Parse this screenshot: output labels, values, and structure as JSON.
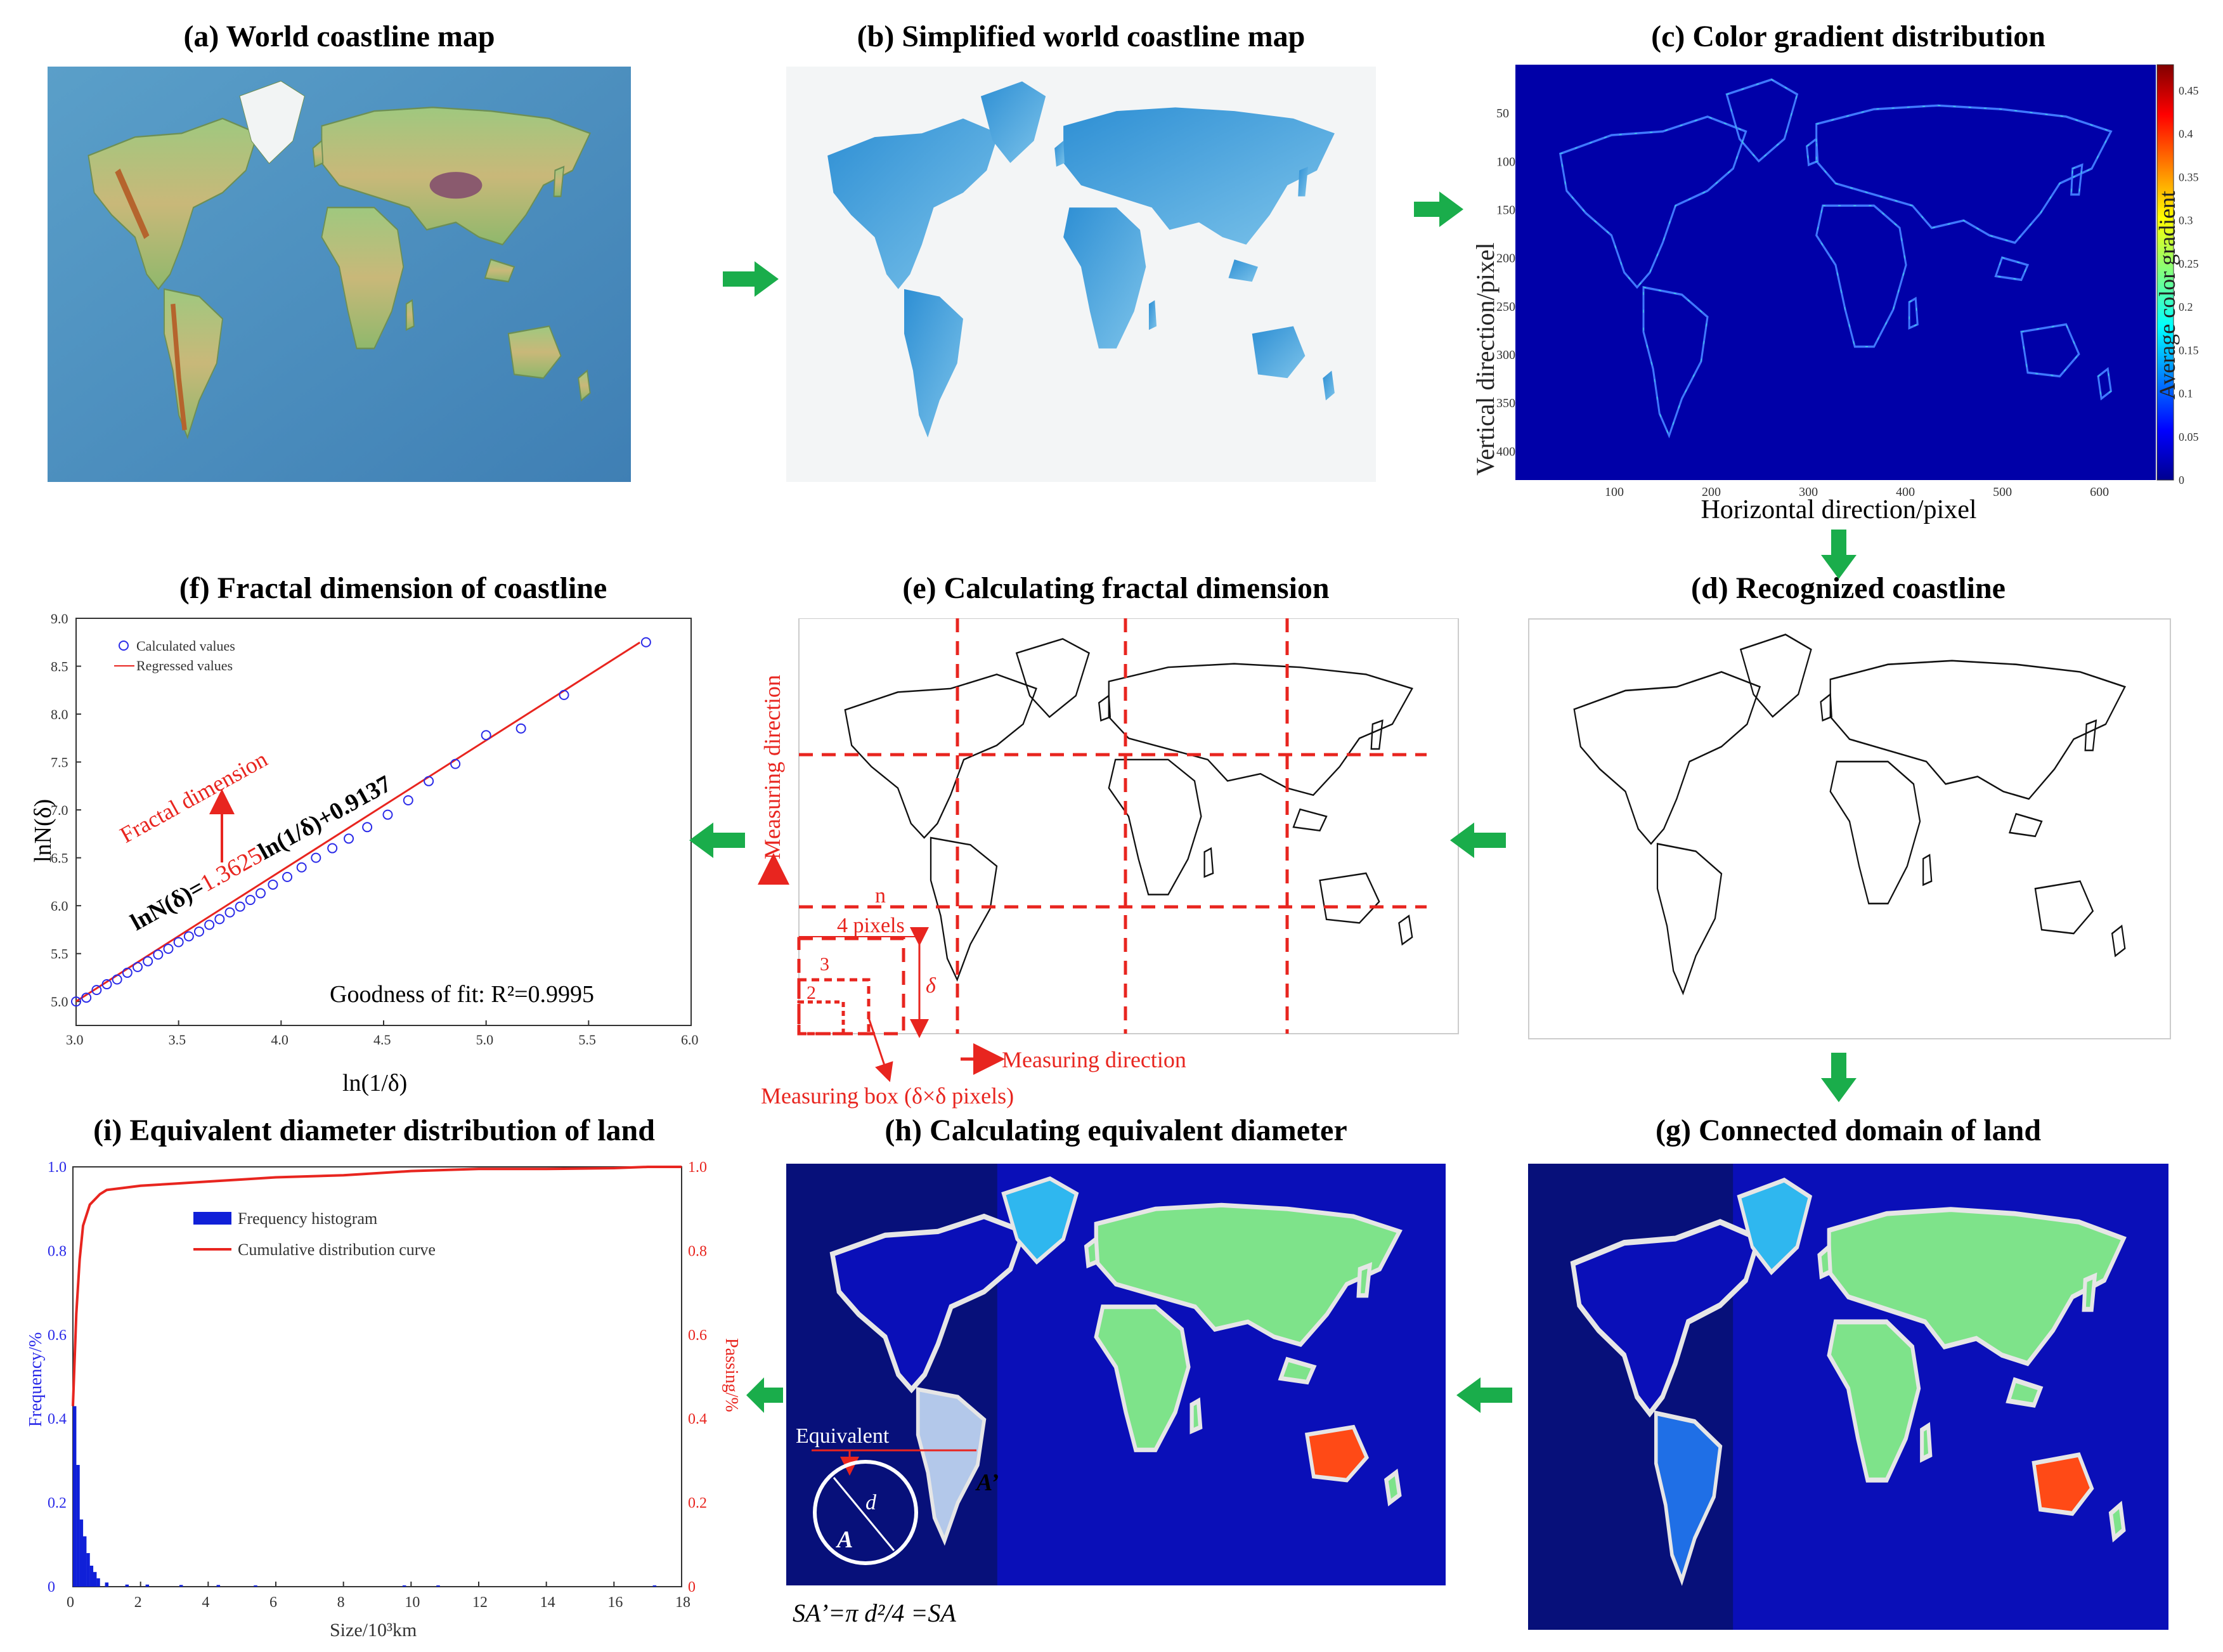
{
  "panels": {
    "a": {
      "title": "(a) World coastline map"
    },
    "b": {
      "title": "(b) Simplified world coastline map"
    },
    "c": {
      "title": "(c) Color gradient distribution",
      "xlabel": "Horizontal direction/pixel",
      "ylabel": "Vertical direction/pixel",
      "colorbar_label": "Average color gradient",
      "x_ticks": [
        "100",
        "200",
        "300",
        "400",
        "500",
        "600"
      ],
      "y_ticks": [
        "50",
        "100",
        "150",
        "200",
        "250",
        "300",
        "350",
        "400"
      ],
      "cbar_ticks": [
        "0",
        "0.05",
        "0.1",
        "0.15",
        "0.2",
        "0.25",
        "0.3",
        "0.35",
        "0.4",
        "0.45"
      ]
    },
    "d": {
      "title": "(d) Recognized coastline"
    },
    "e": {
      "title": "(e) Calculating fractal dimension",
      "measuring_direction_v": "Measuring direction",
      "measuring_direction_h": "Measuring direction",
      "label_n": "n",
      "label_4px": "4 pixels",
      "label_3": "3",
      "label_2": "2",
      "label_delta": "δ",
      "measuring_box": "Measuring box (δ×δ pixels)"
    },
    "f": {
      "title": "(f) Fractal dimension of coastline",
      "xlabel": "ln(1/δ)",
      "ylabel": "lnN(δ)",
      "legend_calc": "Calculated values",
      "legend_reg": "Regressed values",
      "fractal_label": "Fractal dimension",
      "eq_prefix": "lnN(δ)=",
      "eq_slope": "1.3625",
      "eq_suffix": "ln(1/δ)+0.9137",
      "fit_text": "Goodness of fit: R²=0.9995",
      "x_ticks": [
        "3.0",
        "3.5",
        "4.0",
        "4.5",
        "5.0",
        "5.5",
        "6.0"
      ],
      "y_ticks": [
        "5.0",
        "5.5",
        "6.0",
        "6.5",
        "7.0",
        "7.5",
        "8.0",
        "8.5",
        "9.0"
      ]
    },
    "g": {
      "title": "(g) Connected domain of land"
    },
    "h": {
      "title": "(h) Calculating equivalent diameter",
      "equivalent": "Equivalent",
      "label_A_prime": "A’",
      "label_A": "A",
      "label_d": "d",
      "formula": "SA’=π d²/4 =SA"
    },
    "i": {
      "title": "(i) Equivalent diameter distribution of land",
      "xlabel": "Size/10³km",
      "ylabel_left": "Frequency/%",
      "ylabel_right": "Passing/%",
      "legend_hist": "Frequency histogram",
      "legend_curve": "Cumulative distribution curve",
      "x_ticks": [
        "0",
        "2",
        "4",
        "6",
        "8",
        "10",
        "12",
        "14",
        "16",
        "18"
      ],
      "y_ticks": [
        "0",
        "0.2",
        "0.4",
        "0.6",
        "0.8",
        "1.0"
      ]
    }
  },
  "colors": {
    "flow_arrow": "#1aad4b",
    "annotation_red": "#e8251f",
    "ocean_blue": "#0a0fb8",
    "land_green": "#7ee38a",
    "marker_blue": "#2a2ae8"
  },
  "chart_data": [
    {
      "type": "scatter",
      "title": "(f) Fractal dimension of coastline",
      "xlabel": "ln(1/δ)",
      "ylabel": "lnN(δ)",
      "xlim": [
        3.0,
        6.0
      ],
      "ylim": [
        4.75,
        9.0
      ],
      "series": [
        {
          "name": "Calculated values",
          "x": [
            3.0,
            3.05,
            3.1,
            3.15,
            3.2,
            3.25,
            3.3,
            3.35,
            3.4,
            3.45,
            3.5,
            3.55,
            3.6,
            3.65,
            3.7,
            3.75,
            3.8,
            3.85,
            3.9,
            3.96,
            4.03,
            4.1,
            4.17,
            4.25,
            4.33,
            4.42,
            4.52,
            4.62,
            4.72,
            4.85,
            5.0,
            5.17,
            5.38,
            5.78
          ],
          "y": [
            5.0,
            5.04,
            5.12,
            5.18,
            5.23,
            5.3,
            5.36,
            5.42,
            5.49,
            5.55,
            5.62,
            5.68,
            5.73,
            5.8,
            5.86,
            5.93,
            5.99,
            6.06,
            6.13,
            6.22,
            6.3,
            6.4,
            6.5,
            6.6,
            6.7,
            6.82,
            6.95,
            7.1,
            7.3,
            7.48,
            7.78,
            7.85,
            8.2,
            8.75
          ]
        },
        {
          "name": "Regressed values",
          "x": [
            3.0,
            5.75
          ],
          "y": [
            5.0012,
            8.7481
          ]
        }
      ]
    },
    {
      "type": "bar",
      "title": "(i) Equivalent diameter distribution of land",
      "xlabel": "Size/10³km",
      "ylabel": "Frequency/%",
      "xlim": [
        0,
        18
      ],
      "ylim": [
        0,
        1.0
      ],
      "series": [
        {
          "name": "Frequency histogram",
          "x": [
            0.05,
            0.15,
            0.25,
            0.35,
            0.45,
            0.55,
            0.65,
            0.75,
            1.0,
            1.6,
            2.2,
            3.2,
            4.3,
            5.4,
            9.8,
            10.8,
            17.2
          ],
          "values": [
            0.43,
            0.29,
            0.16,
            0.12,
            0.08,
            0.05,
            0.035,
            0.02,
            0.01,
            0.005,
            0.005,
            0.004,
            0.004,
            0.003,
            0.003,
            0.003,
            0.003
          ]
        },
        {
          "name": "Cumulative distribution curve",
          "x": [
            0,
            0.1,
            0.2,
            0.3,
            0.5,
            0.8,
            1.0,
            1.5,
            2,
            3,
            4,
            5,
            6,
            8,
            10,
            12,
            14,
            16,
            17,
            18
          ],
          "values": [
            0.43,
            0.65,
            0.78,
            0.86,
            0.91,
            0.935,
            0.945,
            0.95,
            0.955,
            0.96,
            0.965,
            0.97,
            0.975,
            0.98,
            0.99,
            0.995,
            0.995,
            0.997,
            1.0,
            1.0
          ]
        }
      ]
    }
  ]
}
